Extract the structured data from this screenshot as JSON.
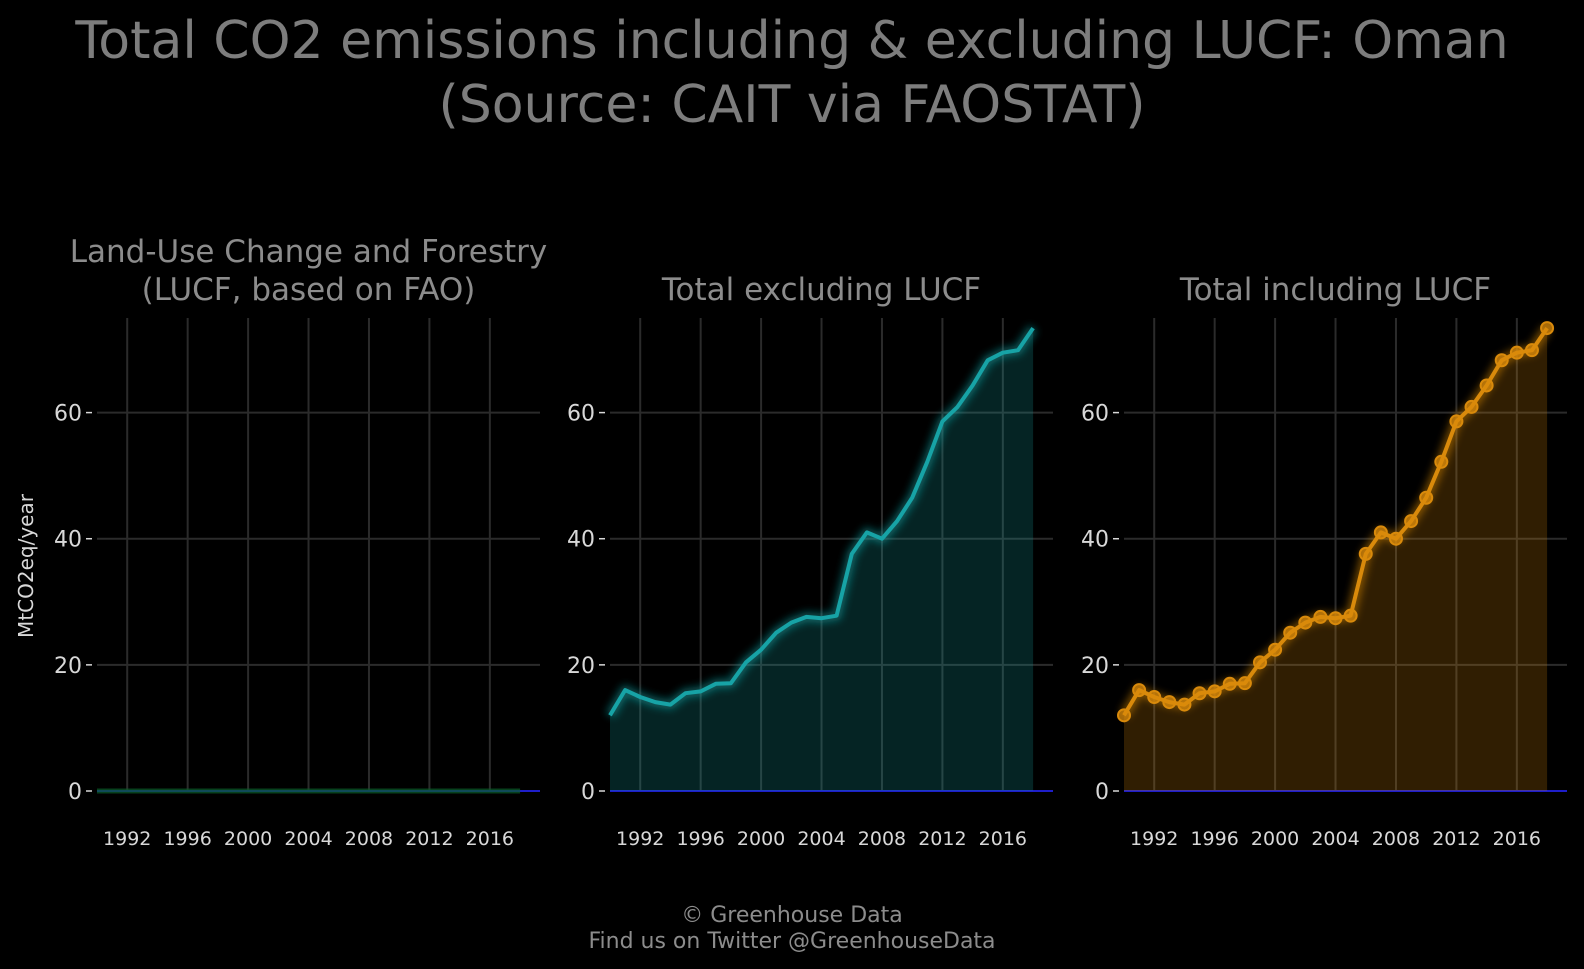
{
  "figure": {
    "title_line1": "Total CO2 emissions including & excluding LUCF: Oman",
    "title_line2": "(Source: CAIT via FAOSTAT)",
    "ylabel": "MtCO2eq/year",
    "footer_line1": "© Greenhouse Data",
    "footer_line2": "Find us on Twitter @GreenhouseData",
    "background": "#000000"
  },
  "chart_data": [
    {
      "type": "area",
      "title_line1": "Land-Use Change and Forestry",
      "title_line2": "(LUCF, based on FAO)",
      "color": "#0a5c2a",
      "marker": false,
      "glow": false,
      "x": [
        1990,
        1991,
        1992,
        1993,
        1994,
        1995,
        1996,
        1997,
        1998,
        1999,
        2000,
        2001,
        2002,
        2003,
        2004,
        2005,
        2006,
        2007,
        2008,
        2009,
        2010,
        2011,
        2012,
        2013,
        2014,
        2015,
        2016,
        2017,
        2018
      ],
      "values": [
        0,
        0,
        0,
        0,
        0,
        0,
        0,
        0,
        0,
        0,
        0,
        0,
        0,
        0,
        0,
        0,
        0,
        0,
        0,
        0,
        0,
        0,
        0,
        0,
        0,
        0,
        0,
        0,
        0
      ],
      "xticks": [
        "1992",
        "1996",
        "2000",
        "2004",
        "2008",
        "2012",
        "2016"
      ],
      "yticks": [
        "0",
        "20",
        "40",
        "60"
      ],
      "xlim": [
        1990,
        2018
      ],
      "ylim": [
        0,
        75
      ],
      "grid": true
    },
    {
      "type": "area",
      "title_line1": "Total excluding LUCF",
      "title_line2": "",
      "color": "#17a3a6",
      "marker": false,
      "glow": true,
      "x": [
        1990,
        1991,
        1992,
        1993,
        1994,
        1995,
        1996,
        1997,
        1998,
        1999,
        2000,
        2001,
        2002,
        2003,
        2004,
        2005,
        2006,
        2007,
        2008,
        2009,
        2010,
        2011,
        2012,
        2013,
        2014,
        2015,
        2016,
        2017,
        2018
      ],
      "values": [
        12.0,
        16.0,
        14.9,
        14.1,
        13.7,
        15.5,
        15.8,
        17.0,
        17.1,
        20.4,
        22.4,
        25.1,
        26.7,
        27.6,
        27.4,
        27.8,
        37.6,
        41.0,
        40.0,
        42.8,
        46.5,
        52.2,
        58.6,
        60.9,
        64.3,
        68.3,
        69.5,
        69.9,
        73.4
      ],
      "xticks": [
        "1992",
        "1996",
        "2000",
        "2004",
        "2008",
        "2012",
        "2016"
      ],
      "yticks": [
        "0",
        "20",
        "40",
        "60"
      ],
      "xlim": [
        1990,
        2018
      ],
      "ylim": [
        0,
        75
      ],
      "grid": true
    },
    {
      "type": "area",
      "title_line1": "Total including LUCF",
      "title_line2": "",
      "color": "#d98a0b",
      "marker": true,
      "glow": true,
      "x": [
        1990,
        1991,
        1992,
        1993,
        1994,
        1995,
        1996,
        1997,
        1998,
        1999,
        2000,
        2001,
        2002,
        2003,
        2004,
        2005,
        2006,
        2007,
        2008,
        2009,
        2010,
        2011,
        2012,
        2013,
        2014,
        2015,
        2016,
        2017,
        2018
      ],
      "values": [
        12.0,
        16.0,
        14.9,
        14.1,
        13.7,
        15.5,
        15.8,
        17.0,
        17.1,
        20.4,
        22.4,
        25.1,
        26.7,
        27.6,
        27.4,
        27.8,
        37.6,
        41.0,
        40.0,
        42.8,
        46.5,
        52.2,
        58.6,
        60.9,
        64.3,
        68.3,
        69.5,
        69.9,
        73.4
      ],
      "xticks": [
        "1992",
        "1996",
        "2000",
        "2004",
        "2008",
        "2012",
        "2016"
      ],
      "yticks": [
        "0",
        "20",
        "40",
        "60"
      ],
      "xlim": [
        1990,
        2018
      ],
      "ylim": [
        0,
        75
      ],
      "grid": true
    }
  ]
}
